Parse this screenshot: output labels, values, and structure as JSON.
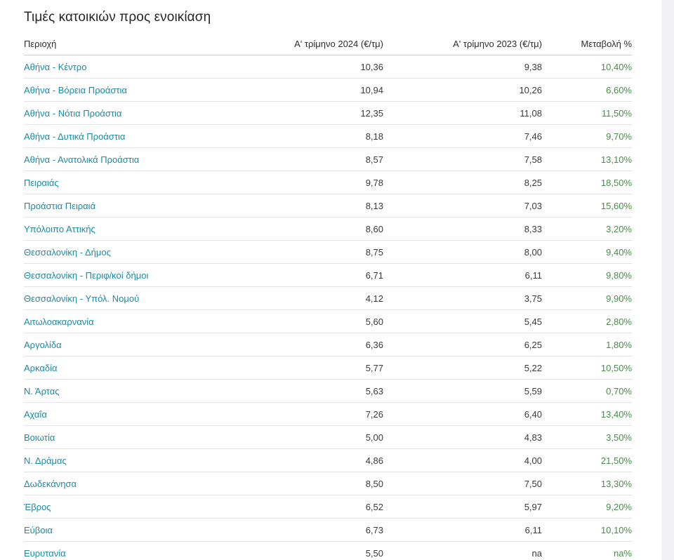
{
  "title": "Τιμές κατοικιών προς ενοικίαση",
  "table": {
    "headers": {
      "area": "Περιοχή",
      "q1_2024": "Α' τρίμηνο 2024 (€/τμ)",
      "q1_2023": "Α' τρίμηνο 2023 (€/τμ)",
      "change": "Μεταβολή %"
    },
    "rows": [
      {
        "area": "Αθήνα - Κέντρο",
        "q1_2024": "10,36",
        "q1_2023": "9,38",
        "change": "10,40%"
      },
      {
        "area": "Αθήνα - Βόρεια Προάστια",
        "q1_2024": "10,94",
        "q1_2023": "10,26",
        "change": "6,60%"
      },
      {
        "area": "Αθήνα - Νότια Προάστια",
        "q1_2024": "12,35",
        "q1_2023": "11,08",
        "change": "11,50%"
      },
      {
        "area": "Αθήνα - Δυτικά Προάστια",
        "q1_2024": "8,18",
        "q1_2023": "7,46",
        "change": "9,70%"
      },
      {
        "area": "Αθήνα - Ανατολικά Προάστια",
        "q1_2024": "8,57",
        "q1_2023": "7,58",
        "change": "13,10%"
      },
      {
        "area": "Πειραιάς",
        "q1_2024": "9,78",
        "q1_2023": "8,25",
        "change": "18,50%"
      },
      {
        "area": "Προάστια Πειραιά",
        "q1_2024": "8,13",
        "q1_2023": "7,03",
        "change": "15,60%"
      },
      {
        "area": "Υπόλοιπο Αττικής",
        "q1_2024": "8,60",
        "q1_2023": "8,33",
        "change": "3,20%"
      },
      {
        "area": "Θεσσαλονίκη - Δήμος",
        "q1_2024": "8,75",
        "q1_2023": "8,00",
        "change": "9,40%"
      },
      {
        "area": "Θεσσαλονίκη - Περιφ/κοί δήμοι",
        "q1_2024": "6,71",
        "q1_2023": "6,11",
        "change": "9,80%"
      },
      {
        "area": "Θεσσαλονίκη - Υπόλ. Νομού",
        "q1_2024": "4,12",
        "q1_2023": "3,75",
        "change": "9,90%"
      },
      {
        "area": "Αιτωλοακαρνανία",
        "q1_2024": "5,60",
        "q1_2023": "5,45",
        "change": "2,80%"
      },
      {
        "area": "Αργολίδα",
        "q1_2024": "6,36",
        "q1_2023": "6,25",
        "change": "1,80%"
      },
      {
        "area": "Αρκαδία",
        "q1_2024": "5,77",
        "q1_2023": "5,22",
        "change": "10,50%"
      },
      {
        "area": "Ν. Άρτας",
        "q1_2024": "5,63",
        "q1_2023": "5,59",
        "change": "0,70%"
      },
      {
        "area": "Αχαΐα",
        "q1_2024": "7,26",
        "q1_2023": "6,40",
        "change": "13,40%"
      },
      {
        "area": "Βοιωτία",
        "q1_2024": "5,00",
        "q1_2023": "4,83",
        "change": "3,50%"
      },
      {
        "area": "Ν. Δράμας",
        "q1_2024": "4,86",
        "q1_2023": "4,00",
        "change": "21,50%"
      },
      {
        "area": "Δωδεκάνησα",
        "q1_2024": "8,50",
        "q1_2023": "7,50",
        "change": "13,30%"
      },
      {
        "area": "Έβρος",
        "q1_2024": "6,52",
        "q1_2023": "5,97",
        "change": "9,20%"
      },
      {
        "area": "Εύβοια",
        "q1_2024": "6,73",
        "q1_2023": "6,11",
        "change": "10,10%"
      },
      {
        "area": "Ευρυτανία",
        "q1_2024": "5,50",
        "q1_2023": "na",
        "change": "na%"
      }
    ]
  }
}
